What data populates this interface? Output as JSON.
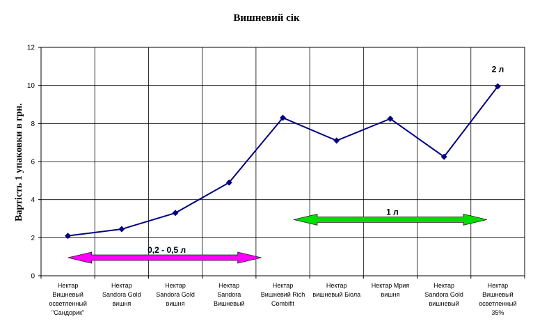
{
  "chart_data": {
    "type": "line",
    "title": "Вишневий сік",
    "ylabel": "Вартість 1 упаковки в грн.",
    "xlabel": "",
    "ylim": [
      0,
      12
    ],
    "yticks": [
      0,
      2,
      4,
      6,
      8,
      10,
      12
    ],
    "grid": true,
    "categories": [
      [
        "Нектар",
        "Вишневый",
        "осветленный",
        "\"Сандорик\""
      ],
      [
        "Нектар",
        "Sandora Gold",
        "вишня"
      ],
      [
        "Нектар",
        "Sandora Gold",
        "вишня"
      ],
      [
        "Нектар",
        "Sandora",
        "Вишневый"
      ],
      [
        "Нектар",
        "Вишневий Rich",
        "Combifit"
      ],
      [
        "Нектар",
        "вишневый Біола"
      ],
      [
        "Нектар Мрия",
        "вишня"
      ],
      [
        "Нектар",
        "Sandora Gold",
        "вишневый"
      ],
      [
        "Нектар",
        "Вишневый",
        "осветленный",
        "35%"
      ]
    ],
    "series": [
      {
        "values": [
          2.1,
          2.45,
          3.3,
          4.9,
          8.3,
          7.1,
          8.25,
          6.25,
          9.95
        ],
        "color": "#000080"
      }
    ],
    "annotations": [
      {
        "text": "0,2 - 0,5 л",
        "from": 0,
        "to": 3.6,
        "y": 0.95,
        "color": "#ff00ff"
      },
      {
        "text": "1 л",
        "from": 4.2,
        "to": 7.8,
        "y": 2.95,
        "color": "#00dd00"
      },
      {
        "text": "2 л",
        "at": 8,
        "y": 10.7
      }
    ]
  }
}
